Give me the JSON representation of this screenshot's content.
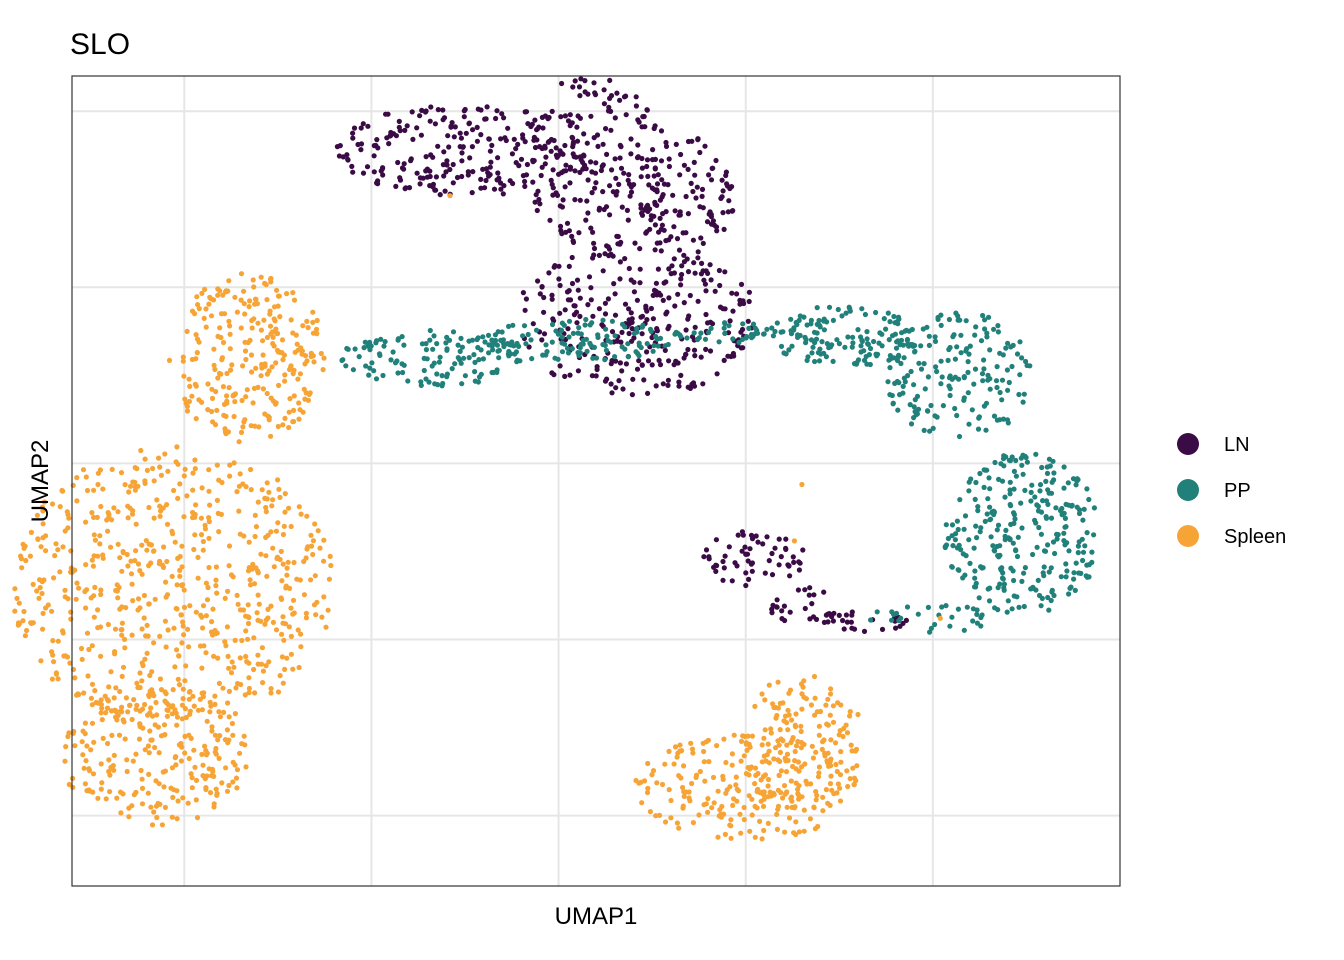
{
  "chart_data": {
    "type": "scatter",
    "title": "SLO",
    "xlabel": "UMAP1",
    "ylabel": "UMAP2",
    "xlim": [
      -8.0,
      20.0
    ],
    "ylim": [
      -7.0,
      16.0
    ],
    "x_gridlines": [
      -5,
      0,
      5,
      10,
      15
    ],
    "y_gridlines": [
      -5,
      0,
      5,
      10,
      15
    ],
    "tick_labels_shown": false,
    "grid": true,
    "legend_position": "right",
    "series": [
      {
        "name": "LN",
        "color": "#3B0B45"
      },
      {
        "name": "PP",
        "color": "#21817A"
      },
      {
        "name": "Spleen",
        "color": "#F7A437"
      }
    ],
    "clusters": [
      {
        "series": "LN",
        "shape": "ellipse",
        "cx": 2.55,
        "cy": 13.9,
        "rx": 3.55,
        "ry": 1.3,
        "n": 230
      },
      {
        "series": "LN",
        "shape": "ellipse",
        "cx": 6.0,
        "cy": 13.6,
        "rx": 2.0,
        "ry": 2.5,
        "n": 200
      },
      {
        "series": "LN",
        "shape": "ellipse",
        "cx": 8.4,
        "cy": 12.5,
        "rx": 1.3,
        "ry": 1.8,
        "n": 110
      },
      {
        "series": "LN",
        "shape": "ellipse",
        "cx": 7.1,
        "cy": 9.1,
        "rx": 3.3,
        "ry": 2.2,
        "n": 300
      },
      {
        "series": "LN",
        "shape": "ellipse",
        "cx": 10.2,
        "cy": 2.3,
        "rx": 1.4,
        "ry": 0.8,
        "n": 60
      },
      {
        "series": "LN",
        "shape": "ellipse",
        "cx": 11.5,
        "cy": 1.0,
        "rx": 0.9,
        "ry": 0.6,
        "n": 25
      },
      {
        "series": "LN",
        "shape": "ellipse",
        "cx": 13.0,
        "cy": 0.5,
        "rx": 1.4,
        "ry": 0.3,
        "n": 25
      },
      {
        "series": "PP",
        "shape": "ellipse",
        "cx": 1.7,
        "cy": 8.0,
        "rx": 2.5,
        "ry": 0.8,
        "n": 130
      },
      {
        "series": "PP",
        "shape": "ellipse",
        "cx": 5.5,
        "cy": 8.5,
        "rx": 2.5,
        "ry": 0.6,
        "n": 110
      },
      {
        "series": "PP",
        "shape": "ellipse",
        "cx": 9.5,
        "cy": 8.7,
        "rx": 1.4,
        "ry": 0.3,
        "n": 40
      },
      {
        "series": "PP",
        "shape": "ellipse",
        "cx": 12.6,
        "cy": 8.6,
        "rx": 2.0,
        "ry": 0.9,
        "n": 140
      },
      {
        "series": "PP",
        "shape": "ellipse",
        "cx": 15.7,
        "cy": 7.5,
        "rx": 2.0,
        "ry": 1.8,
        "n": 170
      },
      {
        "series": "PP",
        "shape": "ellipse",
        "cx": 17.4,
        "cy": 3.0,
        "rx": 2.1,
        "ry": 2.3,
        "n": 280
      },
      {
        "series": "PP",
        "shape": "ellipse",
        "cx": 15.0,
        "cy": 0.6,
        "rx": 1.7,
        "ry": 0.4,
        "n": 30
      },
      {
        "series": "Spleen",
        "shape": "ellipse",
        "cx": -3.3,
        "cy": 8.0,
        "rx": 2.1,
        "ry": 2.4,
        "n": 260
      },
      {
        "series": "Spleen",
        "shape": "ellipse",
        "cx": -5.3,
        "cy": 1.5,
        "rx": 4.3,
        "ry": 4.0,
        "n": 620
      },
      {
        "series": "Spleen",
        "shape": "ellipse",
        "cx": -5.8,
        "cy": -3.3,
        "rx": 2.5,
        "ry": 2.0,
        "n": 240
      },
      {
        "series": "Spleen",
        "shape": "ellipse",
        "cx": 10.0,
        "cy": -4.2,
        "rx": 3.0,
        "ry": 1.5,
        "n": 220
      },
      {
        "series": "Spleen",
        "shape": "ellipse",
        "cx": 11.5,
        "cy": -3.0,
        "rx": 1.7,
        "ry": 2.0,
        "n": 140
      }
    ],
    "outliers": [
      {
        "series": "Spleen",
        "x": 2.1,
        "y": 12.6
      },
      {
        "series": "Spleen",
        "x": 11.5,
        "y": 4.4
      },
      {
        "series": "Spleen",
        "x": 11.3,
        "y": 2.8
      },
      {
        "series": "Spleen",
        "x": 15.2,
        "y": 0.6
      }
    ]
  }
}
